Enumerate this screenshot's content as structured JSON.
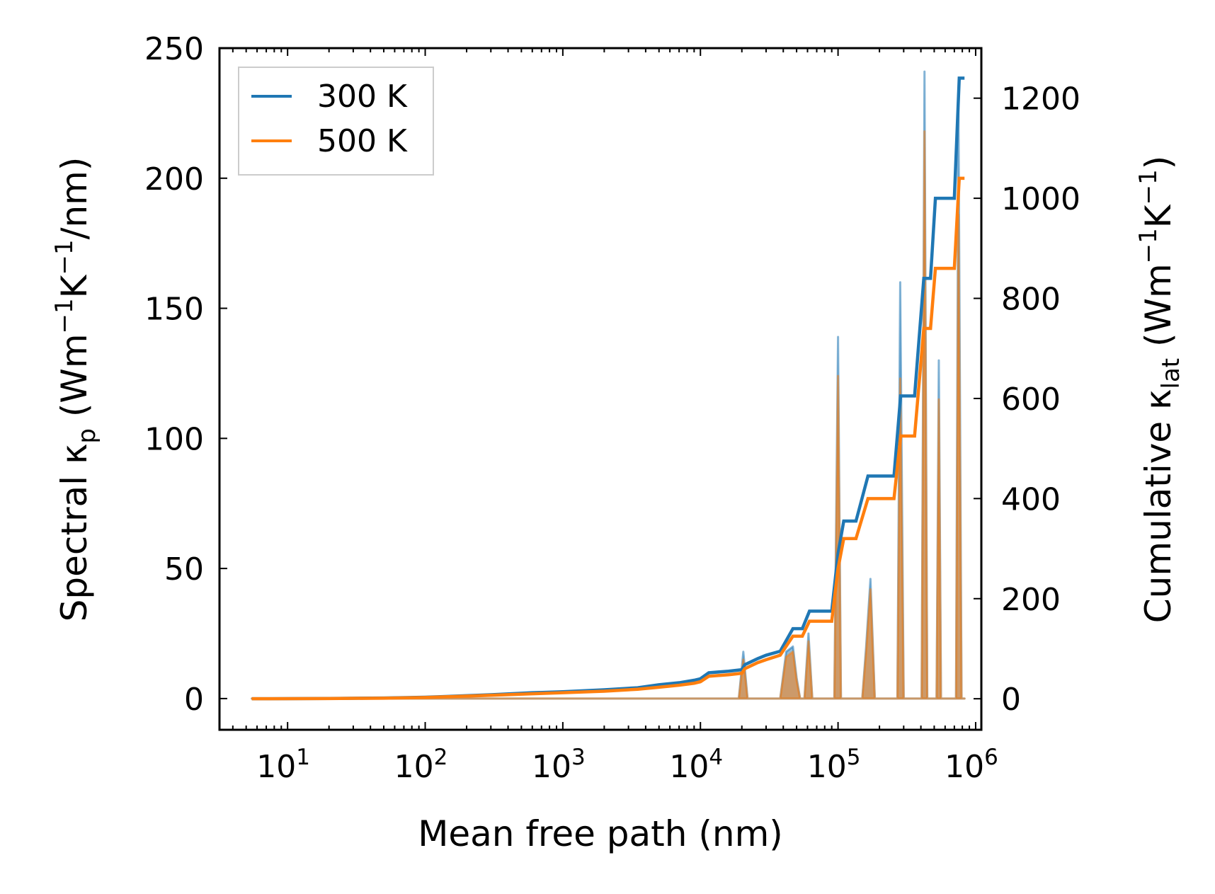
{
  "chart_data": {
    "type": "line",
    "title": "",
    "xlabel": "Mean free path (nm)",
    "xscale": "log",
    "xlim": [
      3.2,
      1100000
    ],
    "x_ticks": [
      {
        "value": 10,
        "base": "10",
        "exp": "1"
      },
      {
        "value": 100,
        "base": "10",
        "exp": "2"
      },
      {
        "value": 1000,
        "base": "10",
        "exp": "3"
      },
      {
        "value": 10000,
        "base": "10",
        "exp": "4"
      },
      {
        "value": 100000,
        "base": "10",
        "exp": "5"
      },
      {
        "value": 1000000,
        "base": "10",
        "exp": "6"
      }
    ],
    "ylabel_left": {
      "prefix": "Spectral κ",
      "sub": "p",
      "unit_open": " (Wm",
      "sup1": "−1",
      "mid": "K",
      "sup2": "−1",
      "unit_close": "/nm)"
    },
    "ylim_left": [
      -12,
      250
    ],
    "yticks_left": [
      0,
      50,
      100,
      150,
      200,
      250
    ],
    "ylabel_right": {
      "prefix": "Cumulative κ",
      "sub": "lat",
      "unit_open": " (Wm",
      "sup1": "−1",
      "mid": "K",
      "sup2": "−1",
      "unit_close": ")"
    },
    "ylim_right": [
      -62,
      1300
    ],
    "yticks_right": [
      0,
      200,
      400,
      600,
      800,
      1000,
      1200
    ],
    "legend": {
      "location": "top-left",
      "entries": [
        {
          "label": "300 K",
          "color": "#1f77b4"
        },
        {
          "label": "500 K",
          "color": "#ff7f0e"
        }
      ]
    },
    "series": [
      {
        "name": "300 K",
        "kind": "cumulative",
        "axis": "right",
        "color": "#1f77b4",
        "x": [
          5.5,
          20,
          50,
          100,
          300,
          600,
          1000,
          2000,
          3500,
          5000,
          7000,
          9000,
          10000,
          11500,
          16000,
          20000,
          21000,
          26000,
          30000,
          38000,
          47000,
          55000,
          62000,
          90000,
          100000,
          110000,
          135000,
          165000,
          180000,
          255000,
          285000,
          360000,
          420000,
          470000,
          510000,
          560000,
          700000,
          760000,
          830000
        ],
        "values": [
          0,
          0.5,
          1.5,
          3,
          8,
          12,
          14,
          18,
          22,
          28,
          32,
          37,
          40,
          52,
          55,
          58,
          68,
          80,
          87,
          95,
          140,
          140,
          175,
          175,
          290,
          355,
          355,
          445,
          445,
          445,
          605,
          605,
          840,
          840,
          1000,
          1000,
          1000,
          1240,
          1240
        ]
      },
      {
        "name": "500 K",
        "kind": "cumulative",
        "axis": "right",
        "color": "#ff7f0e",
        "x": [
          5.5,
          20,
          50,
          100,
          300,
          600,
          1000,
          2000,
          3500,
          5000,
          7000,
          9000,
          10000,
          11500,
          16000,
          20000,
          21000,
          26000,
          30000,
          38000,
          47000,
          55000,
          62000,
          90000,
          100000,
          110000,
          135000,
          165000,
          180000,
          255000,
          285000,
          360000,
          420000,
          470000,
          510000,
          560000,
          700000,
          760000,
          830000
        ],
        "values": [
          0,
          0.4,
          1.2,
          2.5,
          7,
          10,
          12,
          15,
          19,
          23,
          27,
          31,
          34,
          45,
          48,
          51,
          60,
          72,
          78,
          87,
          125,
          125,
          155,
          155,
          260,
          320,
          320,
          400,
          400,
          400,
          525,
          525,
          740,
          740,
          860,
          860,
          860,
          1040,
          1040
        ]
      },
      {
        "name": "Spectral 300 K",
        "kind": "spectral",
        "axis": "left",
        "color": "#1f77b4",
        "x": [
          5.5,
          1000,
          3000,
          4000,
          6000,
          9000,
          12000,
          17000,
          19000,
          20500,
          22000,
          25000,
          32000,
          38000,
          42000,
          47000,
          50000,
          53000,
          57000,
          61000,
          65000,
          88000,
          94000,
          100000,
          105000,
          112000,
          150000,
          160000,
          172000,
          185000,
          255000,
          270000,
          283000,
          300000,
          380000,
          405000,
          425000,
          445000,
          495000,
          520000,
          540000,
          560000,
          690000,
          720000,
          750000,
          790000,
          830000
        ],
        "values": [
          0,
          0,
          0,
          0,
          0,
          0,
          0,
          0,
          0,
          18,
          0,
          0,
          0,
          0,
          18,
          20,
          8,
          0,
          0,
          25,
          0,
          0,
          0,
          139,
          0,
          0,
          0,
          20,
          46,
          0,
          0,
          0,
          160,
          0,
          0,
          0,
          241,
          0,
          0,
          0,
          130,
          0,
          0,
          0,
          228,
          0,
          0
        ]
      },
      {
        "name": "Spectral 500 K",
        "kind": "spectral",
        "axis": "left",
        "color": "#ff7f0e",
        "x": [
          5.5,
          1000,
          3000,
          4000,
          6000,
          9000,
          12000,
          17000,
          19000,
          20500,
          22000,
          25000,
          32000,
          38000,
          42000,
          47000,
          50000,
          53000,
          57000,
          61000,
          65000,
          88000,
          94000,
          100000,
          105000,
          112000,
          150000,
          160000,
          172000,
          185000,
          255000,
          270000,
          283000,
          300000,
          380000,
          405000,
          425000,
          445000,
          495000,
          520000,
          540000,
          560000,
          690000,
          720000,
          750000,
          790000,
          830000
        ],
        "values": [
          0,
          0,
          0,
          0,
          0,
          0,
          0,
          0,
          0,
          15,
          0,
          0,
          0,
          0,
          16,
          18,
          7,
          0,
          0,
          22,
          0,
          0,
          0,
          124,
          0,
          0,
          0,
          18,
          42,
          0,
          0,
          0,
          123,
          0,
          0,
          0,
          218,
          0,
          0,
          0,
          115,
          0,
          0,
          0,
          186,
          0,
          0
        ]
      }
    ]
  }
}
